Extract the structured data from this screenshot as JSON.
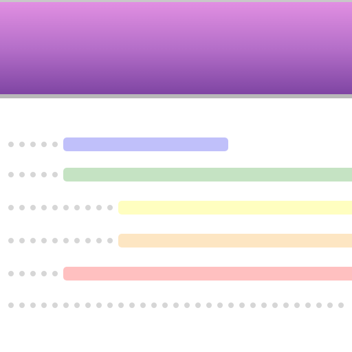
{
  "colors": {
    "header_top": "#e18fe2",
    "header_bottom": "#7f45a3",
    "dot": "#d6d6d6",
    "bar_blue": "#c0c0fa",
    "bar_green": "#c5e3c3",
    "bar_yellow": "#fffec0",
    "bar_orange": "#fde6c3",
    "bar_red": "#ffc0c0"
  },
  "rows": [
    {
      "indent_dots": 5,
      "color": "#c0c0fa"
    },
    {
      "indent_dots": 5,
      "color": "#c5e3c3"
    },
    {
      "indent_dots": 10,
      "color": "#fffec0"
    },
    {
      "indent_dots": 10,
      "color": "#fde6c3"
    },
    {
      "indent_dots": 5,
      "color": "#ffc0c0"
    }
  ],
  "footer_dots": 32
}
